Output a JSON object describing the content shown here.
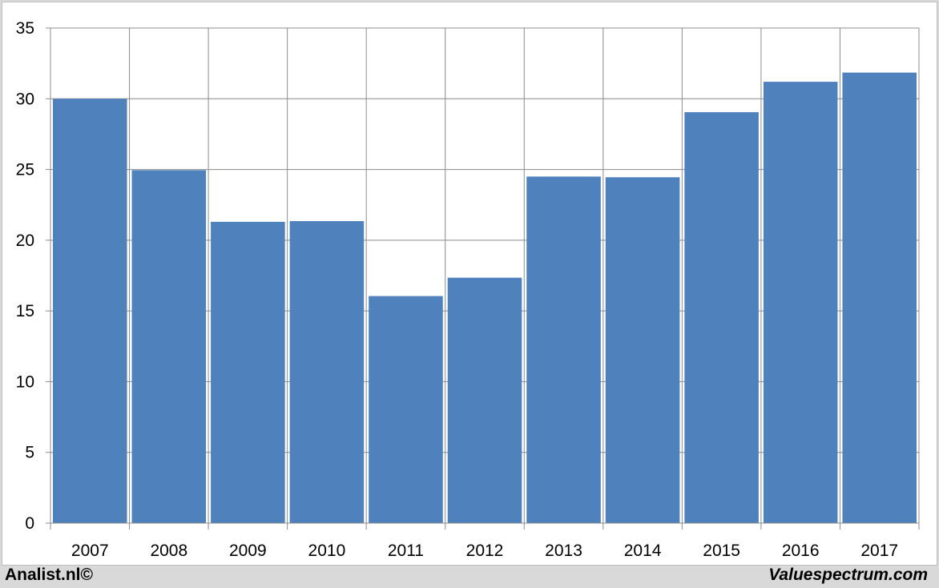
{
  "chart_data": {
    "type": "bar",
    "categories": [
      "2007",
      "2008",
      "2009",
      "2010",
      "2011",
      "2012",
      "2013",
      "2014",
      "2015",
      "2016",
      "2017"
    ],
    "values": [
      30.0,
      24.95,
      21.3,
      21.35,
      16.05,
      17.35,
      24.5,
      24.45,
      29.05,
      31.2,
      31.85
    ],
    "title": "",
    "xlabel": "",
    "ylabel": "",
    "ylim": [
      0,
      35
    ],
    "yticks": [
      0,
      5,
      10,
      15,
      20,
      25,
      30,
      35
    ],
    "grid": true,
    "bar_color": "#4f81bd"
  },
  "footer": {
    "left": "Analist.nl©",
    "right": "Valuespectrum.com"
  }
}
